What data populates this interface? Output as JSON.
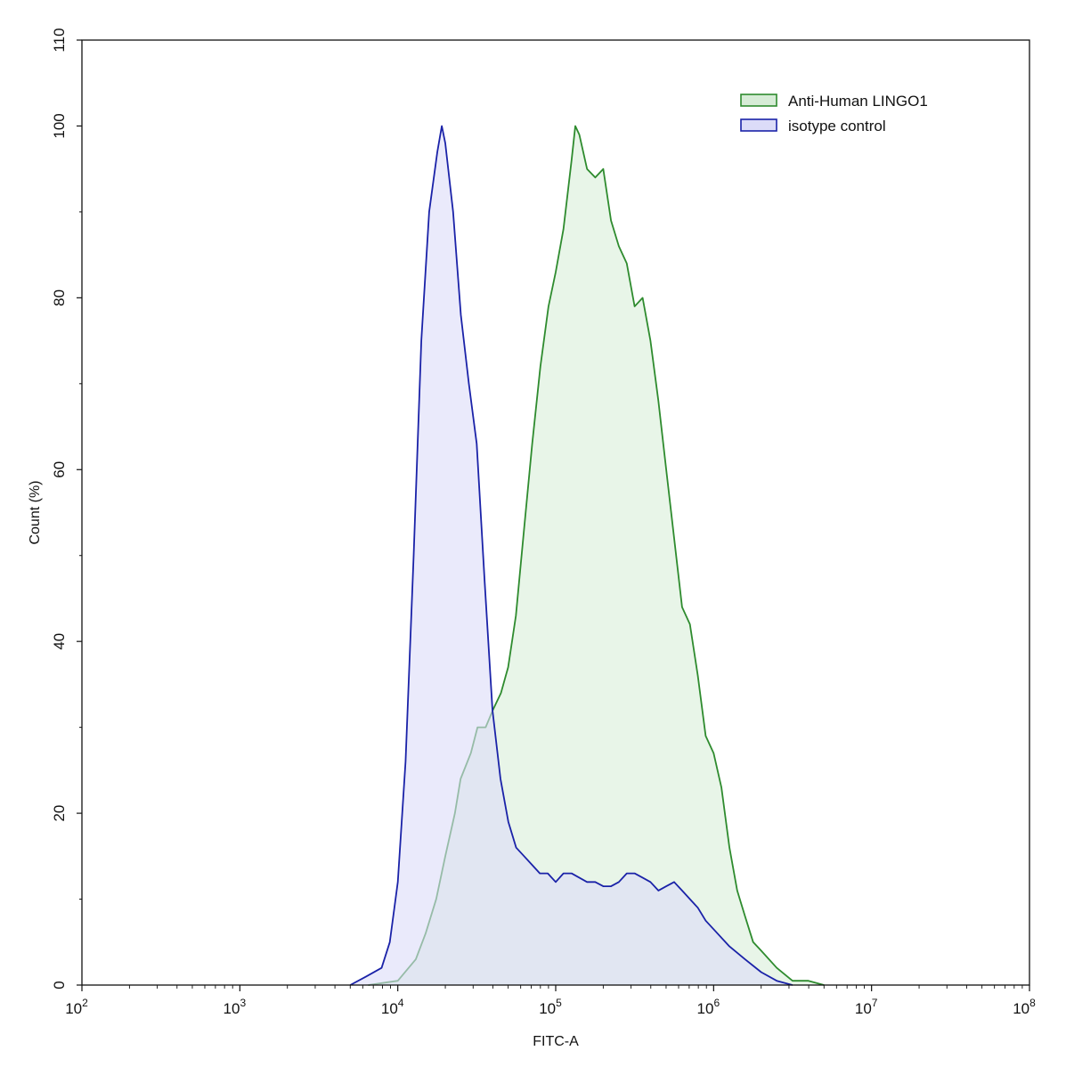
{
  "chart_data": {
    "type": "area",
    "title": "",
    "xlabel": "FITC-A",
    "ylabel": "Count  (%)",
    "x_scale": "log10",
    "xlim": [
      100,
      100000000
    ],
    "ylim": [
      0,
      110
    ],
    "x_ticks": [
      {
        "base": "10",
        "exp": "2"
      },
      {
        "base": "10",
        "exp": "3"
      },
      {
        "base": "10",
        "exp": "4"
      },
      {
        "base": "10",
        "exp": "5"
      },
      {
        "base": "10",
        "exp": "6"
      },
      {
        "base": "10",
        "exp": "7"
      },
      {
        "base": "10",
        "exp": "8"
      }
    ],
    "y_ticks": [
      "0",
      "20",
      "40",
      "60",
      "80",
      "100",
      "110"
    ],
    "grid": false,
    "legend_position": "top-right",
    "series": [
      {
        "name": "Anti-Human LINGO1",
        "line_color": "#2e8b2e",
        "fill_color": "#d6ecd6",
        "x": [
          6500,
          10000,
          13000,
          15000,
          17500,
          20000,
          23000,
          25000,
          29000,
          32000,
          36000,
          40000,
          45000,
          50000,
          56000,
          63000,
          71000,
          80000,
          90000,
          100000,
          112000,
          126000,
          133000,
          141000,
          158000,
          178000,
          200000,
          224000,
          251000,
          282000,
          316000,
          355000,
          398000,
          447000,
          501000,
          562000,
          631000,
          708000,
          794000,
          891000,
          1000000,
          1120000,
          1260000,
          1410000,
          1580000,
          1780000,
          2000000,
          2510000,
          3160000,
          3980000,
          5000000
        ],
        "y": [
          0,
          0.5,
          3,
          6,
          10,
          15,
          20,
          24,
          27,
          30,
          30,
          32,
          34,
          37,
          43,
          53,
          63,
          72,
          79,
          83,
          88,
          96,
          100,
          99,
          95,
          94,
          95,
          89,
          86,
          84,
          79,
          80,
          75,
          68,
          60,
          52,
          44,
          42,
          36,
          29,
          27,
          23,
          16,
          11,
          8,
          5,
          4,
          2,
          0.5,
          0.5,
          0
        ]
      },
      {
        "name": "isotype control",
        "line_color": "#1a22a8",
        "fill_color": "#dcdcf8",
        "x": [
          5000,
          6300,
          7900,
          8900,
          10000,
          11200,
          12600,
          14100,
          15800,
          17800,
          19000,
          20000,
          22400,
          25100,
          28200,
          31600,
          35500,
          39800,
          44700,
          50100,
          56200,
          63100,
          70800,
          79400,
          89100,
          100000,
          112000,
          126000,
          141000,
          158000,
          178000,
          200000,
          224000,
          251000,
          282000,
          316000,
          355000,
          398000,
          447000,
          501000,
          562000,
          631000,
          708000,
          794000,
          891000,
          1000000,
          1260000,
          1580000,
          2000000,
          2510000,
          3160000
        ],
        "y": [
          0,
          1,
          2,
          5,
          12,
          26,
          50,
          75,
          90,
          97,
          100,
          98,
          90,
          78,
          70,
          63,
          47,
          32,
          24,
          19,
          16,
          15,
          14,
          13,
          13,
          12,
          13,
          13,
          12.5,
          12,
          12,
          11.5,
          11.5,
          12,
          13,
          13,
          12.5,
          12,
          11,
          11.5,
          12,
          11,
          10,
          9,
          7.5,
          6.5,
          4.5,
          3,
          1.5,
          0.5,
          0
        ]
      }
    ]
  }
}
